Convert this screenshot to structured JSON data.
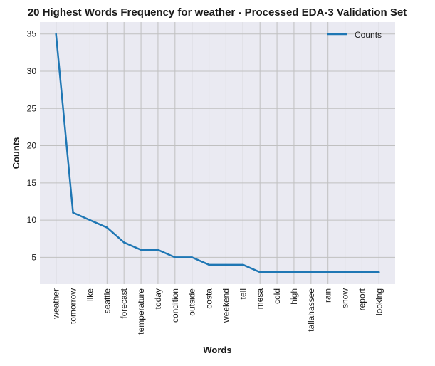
{
  "chart_data": {
    "type": "line",
    "title": "20 Highest Words Frequency for weather - Processed EDA-3 Validation Set",
    "xlabel": "Words",
    "ylabel": "Counts",
    "categories": [
      "weather",
      "tomorrow",
      "like",
      "seattle",
      "forecast",
      "temperature",
      "today",
      "condition",
      "outside",
      "costa",
      "weekend",
      "tell",
      "mesa",
      "cold",
      "high",
      "tallahassee",
      "rain",
      "snow",
      "report",
      "looking"
    ],
    "series": [
      {
        "name": "Counts",
        "values": [
          35,
          11,
          10,
          9,
          7,
          6,
          6,
          5,
          5,
          4,
          4,
          4,
          3,
          3,
          3,
          3,
          3,
          3,
          3,
          3
        ],
        "color": "#1f77b4"
      }
    ],
    "yticks": [
      5,
      10,
      15,
      20,
      25,
      30,
      35
    ],
    "ylim": [
      1.4,
      36.6
    ],
    "grid": true,
    "legend_position": "top-right",
    "background_color": "#eaeaf2",
    "grid_color": "#c0c0c0"
  }
}
